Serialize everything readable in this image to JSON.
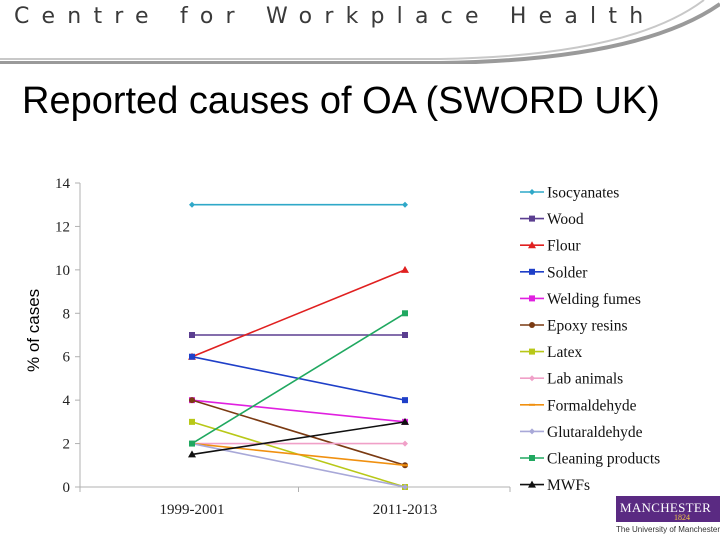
{
  "header": {
    "banner_text": "Centre for Workplace Health",
    "title": "Reported causes of OA (SWORD UK)",
    "y_axis_label": "% of cases"
  },
  "logo": {
    "name": "MANCHESTER",
    "year": "1824",
    "subtitle": "The University of Manchester"
  },
  "colors": {
    "banner_accent": "#9a9a9a",
    "logo_purple": "#5a2a82",
    "logo_gold": "#f2c744"
  },
  "chart_data": {
    "type": "line",
    "categories": [
      "1999-2001",
      "2011-2013"
    ],
    "ylim": [
      0,
      14
    ],
    "yticks": [
      0,
      2,
      4,
      6,
      8,
      10,
      12,
      14
    ],
    "grid": false,
    "legend_position": "right",
    "xlabel": "",
    "ylabel": "% of cases",
    "series": [
      {
        "name": "Isocyanates",
        "values": [
          13,
          13
        ],
        "color": "#2fa8c8",
        "marker": "diamond"
      },
      {
        "name": "Wood",
        "values": [
          7,
          7
        ],
        "color": "#5b3e90",
        "marker": "square"
      },
      {
        "name": "Flour",
        "values": [
          6,
          10
        ],
        "color": "#e02020",
        "marker": "triangle"
      },
      {
        "name": "Solder",
        "values": [
          6,
          4
        ],
        "color": "#1f3fc8",
        "marker": "square"
      },
      {
        "name": "Welding fumes",
        "values": [
          4,
          3
        ],
        "color": "#e020e0",
        "marker": "square"
      },
      {
        "name": "Epoxy resins",
        "values": [
          4,
          1
        ],
        "color": "#7a3a12",
        "marker": "circle"
      },
      {
        "name": "Latex",
        "values": [
          3,
          0
        ],
        "color": "#b8c818",
        "marker": "square"
      },
      {
        "name": "Lab animals",
        "values": [
          2,
          2
        ],
        "color": "#f0a0c8",
        "marker": "diamond"
      },
      {
        "name": "Formaldehyde",
        "values": [
          2,
          1
        ],
        "color": "#f09010",
        "marker": "line"
      },
      {
        "name": "Glutaraldehyde",
        "values": [
          2,
          0
        ],
        "color": "#a8a8d8",
        "marker": "diamond"
      },
      {
        "name": "Cleaning products",
        "values": [
          2,
          8
        ],
        "color": "#20a860",
        "marker": "square"
      },
      {
        "name": "MWFs",
        "values": [
          1.5,
          3
        ],
        "color": "#101010",
        "marker": "triangle"
      }
    ]
  }
}
